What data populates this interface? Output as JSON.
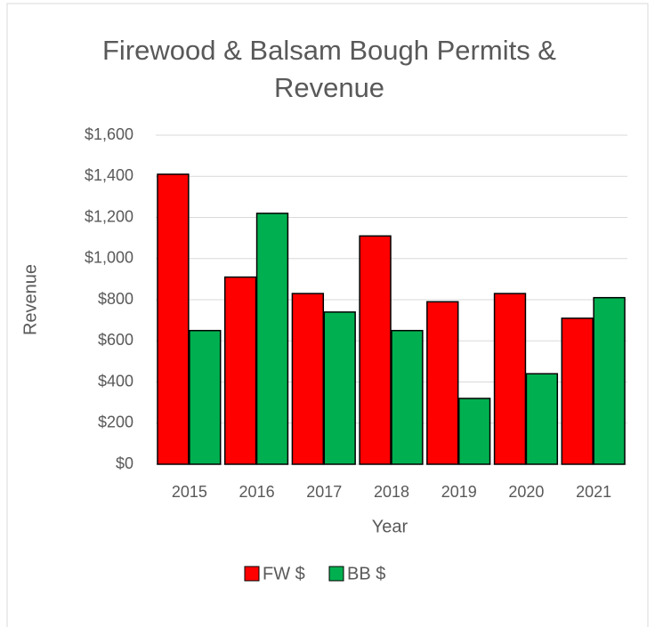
{
  "chart_data": {
    "type": "bar",
    "title": "Firewood & Balsam Bough Permits & Revenue",
    "x_label": "Year",
    "y_label": "Revenue",
    "categories": [
      "2015",
      "2016",
      "2017",
      "2018",
      "2019",
      "2020",
      "2021"
    ],
    "series": [
      {
        "name": "FW $",
        "color": "#ff0000",
        "values": [
          1410,
          910,
          830,
          1110,
          790,
          830,
          710
        ]
      },
      {
        "name": "BB $",
        "color": "#00b050",
        "values": [
          650,
          1220,
          740,
          650,
          320,
          440,
          810
        ]
      }
    ],
    "ylim": [
      0,
      1600
    ],
    "yticks": [
      {
        "value": 0,
        "label": "$0"
      },
      {
        "value": 200,
        "label": "$200"
      },
      {
        "value": 400,
        "label": "$400"
      },
      {
        "value": 600,
        "label": "$600"
      },
      {
        "value": 800,
        "label": "$800"
      },
      {
        "value": 1000,
        "label": "$1,000"
      },
      {
        "value": 1200,
        "label": "$1,200"
      },
      {
        "value": 1400,
        "label": "$1,400"
      },
      {
        "value": 1600,
        "label": "$1,600"
      }
    ],
    "grid": true,
    "legend": "bottom"
  }
}
